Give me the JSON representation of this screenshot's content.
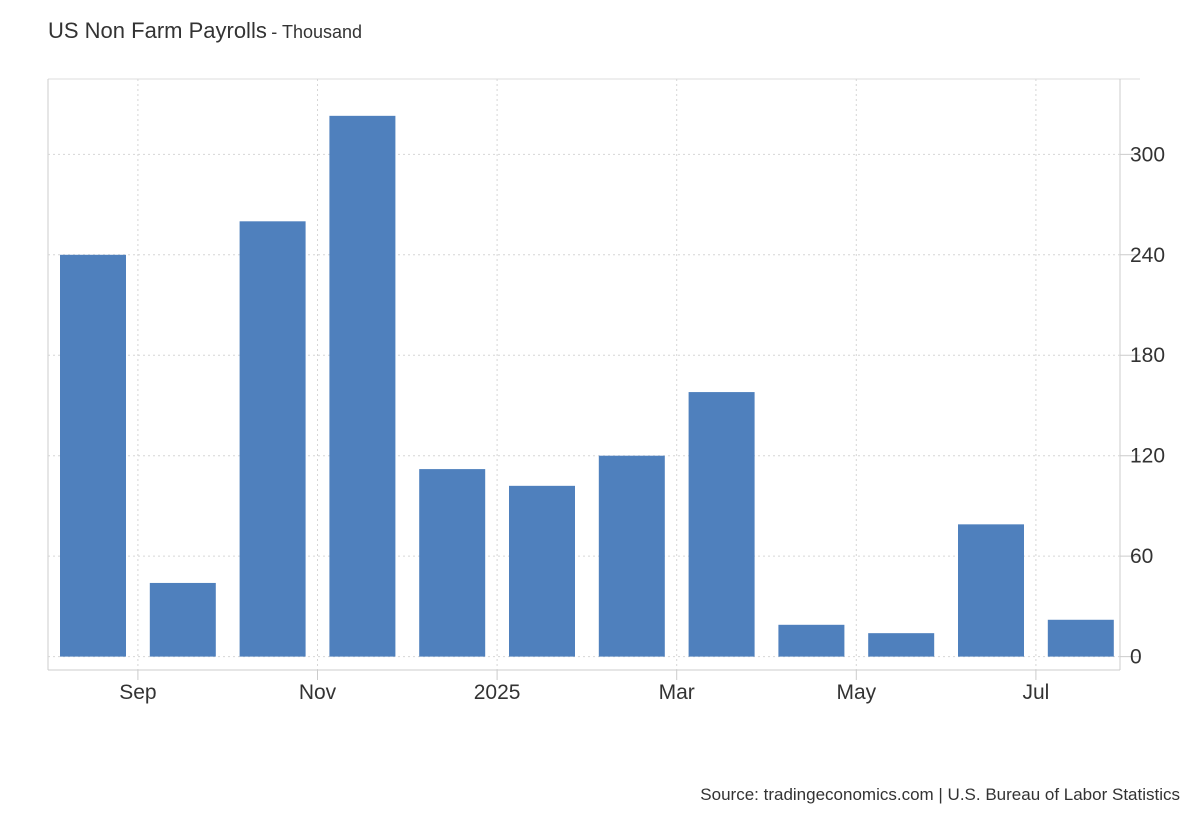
{
  "chart_data": {
    "type": "bar",
    "title": "US Non Farm Payrolls",
    "subtitle": "- Thousand",
    "source": "Source: tradingeconomics.com | U.S. Bureau of Labor Statistics",
    "categories": [
      "2024-08",
      "2024-09",
      "2024-10",
      "2024-11",
      "2024-12",
      "2025-01",
      "2025-02",
      "2025-03",
      "2025-04",
      "2025-05",
      "2025-06",
      "2025-07"
    ],
    "values": [
      240,
      44,
      260,
      323,
      112,
      102,
      120,
      158,
      19,
      14,
      79,
      22
    ],
    "x_ticks": [
      {
        "label": "Sep",
        "after_index": 0
      },
      {
        "label": "Nov",
        "after_index": 2
      },
      {
        "label": "2025",
        "after_index": 4
      },
      {
        "label": "Mar",
        "after_index": 6
      },
      {
        "label": "May",
        "after_index": 8
      },
      {
        "label": "Jul",
        "after_index": 10
      }
    ],
    "y_ticks": [
      0,
      60,
      120,
      180,
      240,
      300
    ],
    "ylim": [
      -8,
      345
    ],
    "bar_color": "#4f80bd",
    "grid": true,
    "y_axis_side": "right"
  }
}
